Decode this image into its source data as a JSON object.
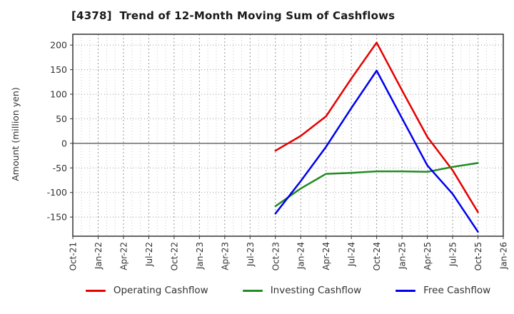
{
  "chart_data": {
    "type": "line",
    "title": "[4378]  Trend of 12-Month Moving Sum of Cashflows",
    "ylabel": "Amount (million yen)",
    "x_tick_labels": [
      "Oct-21",
      "Jan-22",
      "Apr-22",
      "Jul-22",
      "Oct-22",
      "Jan-23",
      "Apr-23",
      "Jul-23",
      "Oct-23",
      "Jan-24",
      "Apr-24",
      "Jul-24",
      "Oct-24",
      "Jan-25",
      "Apr-25",
      "Jul-25",
      "Oct-25",
      "Jan-26"
    ],
    "y_ticks": [
      200,
      150,
      100,
      50,
      0,
      -50,
      -100,
      -150
    ],
    "ylim": [
      -189,
      222
    ],
    "grid": true,
    "zero_line": true,
    "legend_position": "bottom center",
    "months_per_tick": 3,
    "series_start_index": 8,
    "x_points": [
      "Oct-23",
      "Jan-24",
      "Apr-24",
      "Jul-24",
      "Oct-24",
      "Jan-25",
      "Apr-25",
      "Jul-25",
      "Oct-25"
    ],
    "series": [
      {
        "name": "Operating Cashflow",
        "color": "#e60000",
        "values": [
          -15,
          15,
          55,
          132,
          205,
          108,
          13,
          -55,
          -140
        ]
      },
      {
        "name": "Investing Cashflow",
        "color": "#228b22",
        "values": [
          -128,
          -92,
          -62,
          -60,
          -57,
          -57,
          -58,
          -48,
          -40
        ]
      },
      {
        "name": "Free Cashflow",
        "color": "#0000ee",
        "values": [
          -143,
          -77,
          -7,
          72,
          148,
          51,
          -45,
          -103,
          -180
        ]
      }
    ],
    "colors": {
      "frame": "#333333",
      "grid_minor": "#c9c9c9",
      "grid_major": "#9a9a9a",
      "zero_line": "#4d4d4d"
    }
  }
}
